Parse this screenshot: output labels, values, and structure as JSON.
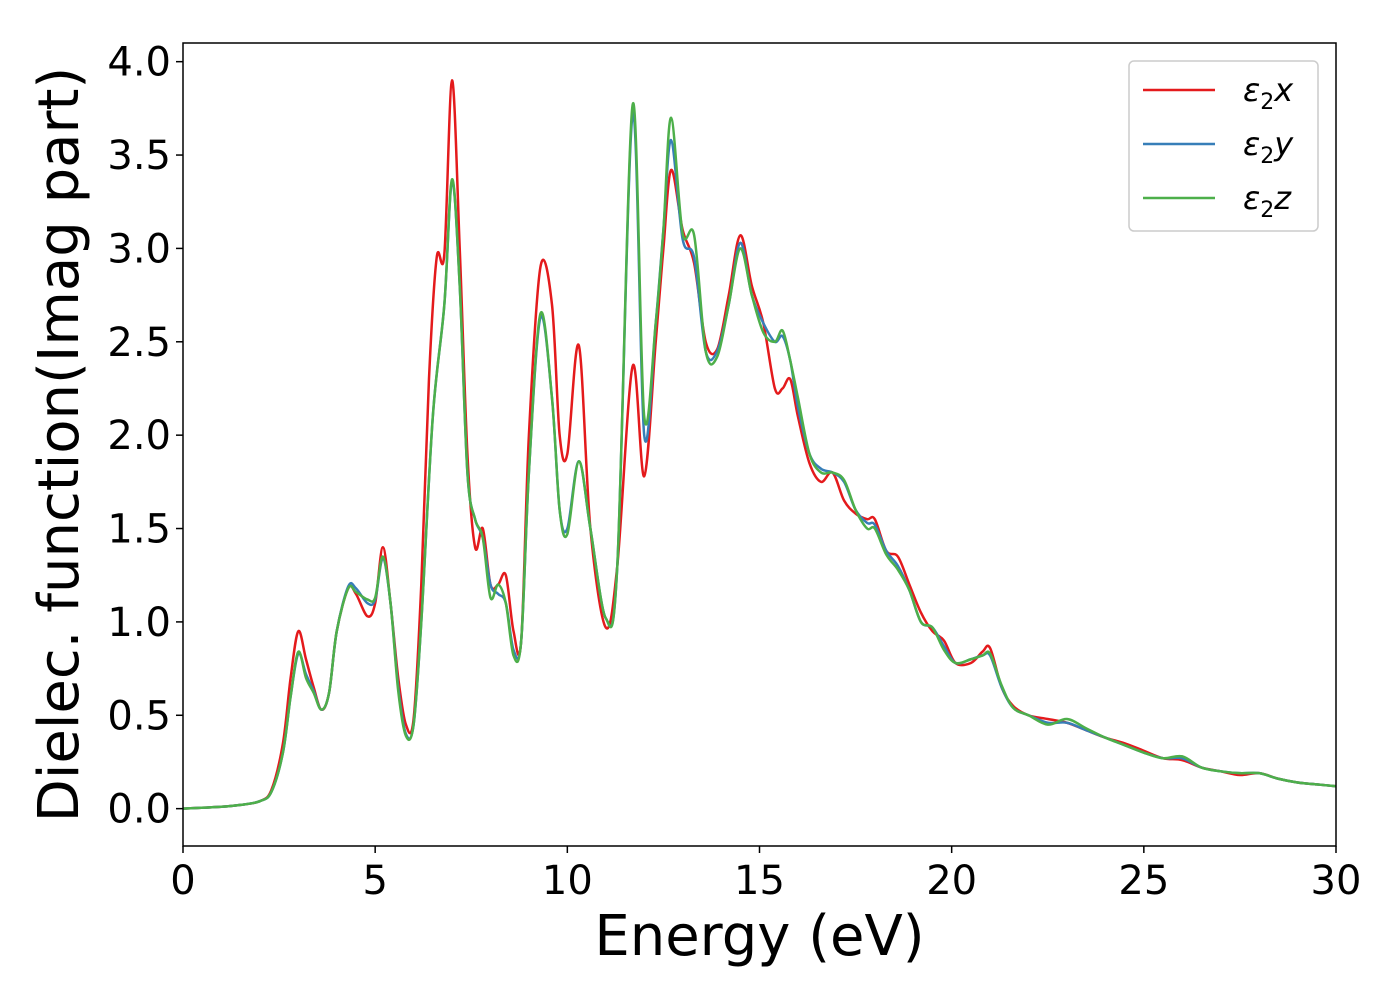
{
  "chart_data": {
    "type": "line",
    "title": "",
    "xlabel": "Energy (eV)",
    "ylabel": "Dielec. function(Imag part)",
    "xlim": [
      0,
      30
    ],
    "ylim": [
      -0.2,
      4.1
    ],
    "xticks": [
      0,
      5,
      10,
      15,
      20,
      25,
      30
    ],
    "yticks": [
      0.0,
      0.5,
      1.0,
      1.5,
      2.0,
      2.5,
      3.0,
      3.5,
      4.0
    ],
    "xtick_labels": [
      "0",
      "5",
      "10",
      "15",
      "20",
      "25",
      "30"
    ],
    "ytick_labels": [
      "0.0",
      "0.5",
      "1.0",
      "1.5",
      "2.0",
      "2.5",
      "3.0",
      "3.5",
      "4.0"
    ],
    "grid": false,
    "legend_position": "top-right",
    "series": [
      {
        "name": "ε₂x",
        "legend_base": "ε",
        "legend_sub": "2",
        "legend_tail": "x",
        "color": "#e41a1c",
        "points": [
          [
            0,
            0
          ],
          [
            1,
            0.01
          ],
          [
            1.5,
            0.02
          ],
          [
            2,
            0.04
          ],
          [
            2.3,
            0.1
          ],
          [
            2.6,
            0.35
          ],
          [
            2.8,
            0.7
          ],
          [
            3.0,
            0.95
          ],
          [
            3.2,
            0.8
          ],
          [
            3.4,
            0.65
          ],
          [
            3.6,
            0.53
          ],
          [
            3.8,
            0.62
          ],
          [
            4.0,
            0.95
          ],
          [
            4.3,
            1.18
          ],
          [
            4.5,
            1.15
          ],
          [
            4.8,
            1.03
          ],
          [
            5.0,
            1.1
          ],
          [
            5.2,
            1.4
          ],
          [
            5.4,
            1.1
          ],
          [
            5.6,
            0.7
          ],
          [
            5.8,
            0.45
          ],
          [
            6.0,
            0.48
          ],
          [
            6.2,
            1.2
          ],
          [
            6.4,
            2.3
          ],
          [
            6.6,
            2.95
          ],
          [
            6.8,
            2.97
          ],
          [
            7.0,
            3.9
          ],
          [
            7.2,
            3.0
          ],
          [
            7.4,
            1.9
          ],
          [
            7.6,
            1.4
          ],
          [
            7.8,
            1.5
          ],
          [
            8.0,
            1.2
          ],
          [
            8.2,
            1.2
          ],
          [
            8.4,
            1.25
          ],
          [
            8.6,
            0.95
          ],
          [
            8.8,
            0.9
          ],
          [
            9.0,
            2.0
          ],
          [
            9.3,
            2.9
          ],
          [
            9.6,
            2.7
          ],
          [
            9.8,
            2.0
          ],
          [
            10.0,
            1.9
          ],
          [
            10.3,
            2.48
          ],
          [
            10.6,
            1.5
          ],
          [
            11.0,
            0.97
          ],
          [
            11.3,
            1.3
          ],
          [
            11.7,
            2.37
          ],
          [
            12.0,
            1.78
          ],
          [
            12.3,
            2.5
          ],
          [
            12.5,
            3.0
          ],
          [
            12.7,
            3.42
          ],
          [
            13.0,
            3.1
          ],
          [
            13.3,
            2.92
          ],
          [
            13.6,
            2.5
          ],
          [
            13.9,
            2.46
          ],
          [
            14.2,
            2.75
          ],
          [
            14.5,
            3.07
          ],
          [
            14.8,
            2.8
          ],
          [
            15.1,
            2.6
          ],
          [
            15.4,
            2.25
          ],
          [
            15.6,
            2.25
          ],
          [
            15.8,
            2.3
          ],
          [
            16.0,
            2.1
          ],
          [
            16.3,
            1.85
          ],
          [
            16.6,
            1.75
          ],
          [
            16.9,
            1.8
          ],
          [
            17.2,
            1.65
          ],
          [
            17.5,
            1.58
          ],
          [
            17.8,
            1.55
          ],
          [
            18.0,
            1.55
          ],
          [
            18.3,
            1.38
          ],
          [
            18.6,
            1.35
          ],
          [
            18.9,
            1.2
          ],
          [
            19.2,
            1.05
          ],
          [
            19.5,
            0.95
          ],
          [
            19.8,
            0.9
          ],
          [
            20.1,
            0.78
          ],
          [
            20.5,
            0.78
          ],
          [
            20.8,
            0.84
          ],
          [
            21.0,
            0.86
          ],
          [
            21.3,
            0.65
          ],
          [
            21.6,
            0.55
          ],
          [
            22.0,
            0.5
          ],
          [
            22.5,
            0.48
          ],
          [
            23.0,
            0.46
          ],
          [
            23.5,
            0.42
          ],
          [
            24.0,
            0.38
          ],
          [
            24.5,
            0.35
          ],
          [
            25.0,
            0.31
          ],
          [
            25.5,
            0.27
          ],
          [
            26.0,
            0.26
          ],
          [
            26.5,
            0.22
          ],
          [
            27.0,
            0.2
          ],
          [
            27.5,
            0.18
          ],
          [
            28.0,
            0.19
          ],
          [
            28.5,
            0.16
          ],
          [
            29.0,
            0.14
          ],
          [
            29.5,
            0.13
          ],
          [
            30.0,
            0.12
          ]
        ]
      },
      {
        "name": "ε₂y",
        "legend_base": "ε",
        "legend_sub": "2",
        "legend_tail": "y",
        "color": "#377eb8",
        "points": [
          [
            0,
            0
          ],
          [
            1,
            0.01
          ],
          [
            1.5,
            0.02
          ],
          [
            2,
            0.04
          ],
          [
            2.3,
            0.09
          ],
          [
            2.6,
            0.3
          ],
          [
            2.8,
            0.6
          ],
          [
            3.0,
            0.83
          ],
          [
            3.2,
            0.72
          ],
          [
            3.4,
            0.63
          ],
          [
            3.6,
            0.53
          ],
          [
            3.8,
            0.62
          ],
          [
            4.0,
            0.95
          ],
          [
            4.3,
            1.19
          ],
          [
            4.5,
            1.18
          ],
          [
            4.8,
            1.1
          ],
          [
            5.0,
            1.12
          ],
          [
            5.2,
            1.34
          ],
          [
            5.4,
            1.1
          ],
          [
            5.6,
            0.65
          ],
          [
            5.8,
            0.4
          ],
          [
            6.0,
            0.45
          ],
          [
            6.2,
            1.0
          ],
          [
            6.5,
            2.1
          ],
          [
            6.8,
            2.7
          ],
          [
            7.0,
            3.36
          ],
          [
            7.2,
            2.8
          ],
          [
            7.4,
            1.8
          ],
          [
            7.6,
            1.55
          ],
          [
            7.8,
            1.45
          ],
          [
            8.0,
            1.2
          ],
          [
            8.2,
            1.15
          ],
          [
            8.4,
            1.1
          ],
          [
            8.6,
            0.85
          ],
          [
            8.8,
            0.9
          ],
          [
            9.0,
            1.8
          ],
          [
            9.3,
            2.63
          ],
          [
            9.6,
            2.2
          ],
          [
            9.8,
            1.6
          ],
          [
            10.0,
            1.5
          ],
          [
            10.3,
            1.86
          ],
          [
            10.6,
            1.5
          ],
          [
            11.0,
            1.02
          ],
          [
            11.3,
            1.3
          ],
          [
            11.7,
            3.72
          ],
          [
            12.0,
            2.0
          ],
          [
            12.3,
            2.6
          ],
          [
            12.5,
            3.1
          ],
          [
            12.7,
            3.58
          ],
          [
            13.0,
            3.05
          ],
          [
            13.3,
            2.95
          ],
          [
            13.6,
            2.45
          ],
          [
            13.9,
            2.45
          ],
          [
            14.2,
            2.7
          ],
          [
            14.5,
            3.03
          ],
          [
            14.8,
            2.75
          ],
          [
            15.1,
            2.6
          ],
          [
            15.4,
            2.5
          ],
          [
            15.6,
            2.53
          ],
          [
            15.8,
            2.4
          ],
          [
            16.0,
            2.15
          ],
          [
            16.3,
            1.9
          ],
          [
            16.6,
            1.82
          ],
          [
            16.9,
            1.8
          ],
          [
            17.2,
            1.75
          ],
          [
            17.5,
            1.6
          ],
          [
            17.8,
            1.53
          ],
          [
            18.0,
            1.52
          ],
          [
            18.3,
            1.38
          ],
          [
            18.6,
            1.3
          ],
          [
            18.9,
            1.17
          ],
          [
            19.2,
            1.0
          ],
          [
            19.5,
            0.97
          ],
          [
            19.8,
            0.87
          ],
          [
            20.1,
            0.78
          ],
          [
            20.5,
            0.8
          ],
          [
            20.8,
            0.82
          ],
          [
            21.0,
            0.82
          ],
          [
            21.3,
            0.65
          ],
          [
            21.6,
            0.54
          ],
          [
            22.0,
            0.5
          ],
          [
            22.5,
            0.46
          ],
          [
            23.0,
            0.46
          ],
          [
            23.5,
            0.42
          ],
          [
            24.0,
            0.38
          ],
          [
            24.5,
            0.34
          ],
          [
            25.0,
            0.3
          ],
          [
            25.5,
            0.27
          ],
          [
            26.0,
            0.27
          ],
          [
            26.5,
            0.22
          ],
          [
            27.0,
            0.2
          ],
          [
            27.5,
            0.19
          ],
          [
            28.0,
            0.19
          ],
          [
            28.5,
            0.16
          ],
          [
            29.0,
            0.14
          ],
          [
            29.5,
            0.13
          ],
          [
            30.0,
            0.12
          ]
        ]
      },
      {
        "name": "ε₂z",
        "legend_base": "ε",
        "legend_sub": "2",
        "legend_tail": "z",
        "color": "#4daf4a",
        "points": [
          [
            0,
            0
          ],
          [
            1,
            0.01
          ],
          [
            1.5,
            0.02
          ],
          [
            2,
            0.04
          ],
          [
            2.3,
            0.09
          ],
          [
            2.6,
            0.3
          ],
          [
            2.8,
            0.6
          ],
          [
            3.0,
            0.84
          ],
          [
            3.2,
            0.7
          ],
          [
            3.4,
            0.62
          ],
          [
            3.6,
            0.53
          ],
          [
            3.8,
            0.62
          ],
          [
            4.0,
            0.95
          ],
          [
            4.3,
            1.18
          ],
          [
            4.5,
            1.16
          ],
          [
            4.8,
            1.12
          ],
          [
            5.0,
            1.13
          ],
          [
            5.2,
            1.35
          ],
          [
            5.4,
            1.1
          ],
          [
            5.6,
            0.63
          ],
          [
            5.8,
            0.39
          ],
          [
            6.0,
            0.45
          ],
          [
            6.2,
            1.0
          ],
          [
            6.5,
            2.1
          ],
          [
            6.8,
            2.7
          ],
          [
            7.0,
            3.37
          ],
          [
            7.2,
            2.8
          ],
          [
            7.4,
            1.8
          ],
          [
            7.6,
            1.55
          ],
          [
            7.8,
            1.45
          ],
          [
            8.0,
            1.13
          ],
          [
            8.2,
            1.2
          ],
          [
            8.4,
            1.1
          ],
          [
            8.6,
            0.82
          ],
          [
            8.8,
            0.9
          ],
          [
            9.0,
            1.8
          ],
          [
            9.3,
            2.65
          ],
          [
            9.6,
            2.2
          ],
          [
            9.8,
            1.6
          ],
          [
            10.0,
            1.47
          ],
          [
            10.3,
            1.86
          ],
          [
            10.6,
            1.5
          ],
          [
            11.0,
            1.02
          ],
          [
            11.3,
            1.3
          ],
          [
            11.7,
            3.77
          ],
          [
            12.0,
            2.1
          ],
          [
            12.3,
            2.6
          ],
          [
            12.5,
            3.1
          ],
          [
            12.7,
            3.7
          ],
          [
            13.0,
            3.08
          ],
          [
            13.3,
            3.07
          ],
          [
            13.6,
            2.45
          ],
          [
            13.9,
            2.42
          ],
          [
            14.2,
            2.7
          ],
          [
            14.5,
            3.0
          ],
          [
            14.8,
            2.75
          ],
          [
            15.1,
            2.55
          ],
          [
            15.4,
            2.5
          ],
          [
            15.6,
            2.56
          ],
          [
            15.8,
            2.4
          ],
          [
            16.0,
            2.2
          ],
          [
            16.3,
            1.9
          ],
          [
            16.6,
            1.8
          ],
          [
            16.9,
            1.8
          ],
          [
            17.2,
            1.76
          ],
          [
            17.5,
            1.6
          ],
          [
            17.8,
            1.5
          ],
          [
            18.0,
            1.5
          ],
          [
            18.3,
            1.36
          ],
          [
            18.6,
            1.28
          ],
          [
            18.9,
            1.17
          ],
          [
            19.2,
            1.0
          ],
          [
            19.5,
            0.97
          ],
          [
            19.8,
            0.85
          ],
          [
            20.1,
            0.78
          ],
          [
            20.5,
            0.8
          ],
          [
            20.8,
            0.82
          ],
          [
            21.0,
            0.83
          ],
          [
            21.3,
            0.66
          ],
          [
            21.6,
            0.54
          ],
          [
            22.0,
            0.5
          ],
          [
            22.5,
            0.45
          ],
          [
            23.0,
            0.48
          ],
          [
            23.5,
            0.43
          ],
          [
            24.0,
            0.38
          ],
          [
            24.5,
            0.34
          ],
          [
            25.0,
            0.3
          ],
          [
            25.5,
            0.27
          ],
          [
            26.0,
            0.28
          ],
          [
            26.5,
            0.22
          ],
          [
            27.0,
            0.2
          ],
          [
            27.5,
            0.19
          ],
          [
            28.0,
            0.19
          ],
          [
            28.5,
            0.16
          ],
          [
            29.0,
            0.14
          ],
          [
            29.5,
            0.13
          ],
          [
            30.0,
            0.12
          ]
        ]
      }
    ]
  }
}
